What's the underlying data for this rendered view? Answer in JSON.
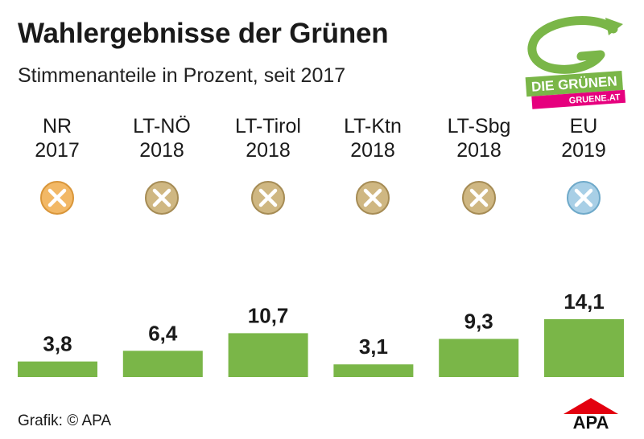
{
  "header": {
    "title": "Wahlergebnisse der Grünen",
    "subtitle": "Stimmenanteile in Prozent, seit 2017"
  },
  "logo": {
    "name": "DIE GRÜNEN",
    "url_text": "GRUENE.AT",
    "icon": "green-g-logo"
  },
  "elections": [
    {
      "line1": "NR",
      "line2": "2017",
      "mark": "x-circle-icon",
      "mark_color": "#f2b866"
    },
    {
      "line1": "LT-NÖ",
      "line2": "2018",
      "mark": "x-circle-icon",
      "mark_color": "#cfb782"
    },
    {
      "line1": "LT-Tirol",
      "line2": "2018",
      "mark": "x-circle-icon",
      "mark_color": "#cfb782"
    },
    {
      "line1": "LT-Ktn",
      "line2": "2018",
      "mark": "x-circle-icon",
      "mark_color": "#cfb782"
    },
    {
      "line1": "LT-Sbg",
      "line2": "2018",
      "mark": "x-circle-icon",
      "mark_color": "#cfb782"
    },
    {
      "line1": "EU",
      "line2": "2019",
      "mark": "x-circle-icon",
      "mark_color": "#a8cfe6"
    }
  ],
  "chart_data": {
    "type": "bar",
    "categories": [
      "NR 2017",
      "LT-NÖ 2018",
      "LT-Tirol 2018",
      "LT-Ktn 2018",
      "LT-Sbg 2018",
      "EU 2019"
    ],
    "values": [
      3.8,
      6.4,
      10.7,
      3.1,
      9.3,
      14.1
    ],
    "value_labels": [
      "3,8",
      "6,4",
      "10,7",
      "3,1",
      "9,3",
      "14,1"
    ],
    "title": "Wahlergebnisse der Grünen",
    "subtitle": "Stimmenanteile in Prozent, seit 2017",
    "ylim": [
      0,
      14.1
    ],
    "grid": false,
    "bar_color": "#7ab648"
  },
  "footer": {
    "credit": "Grafik: © APA",
    "brand": "APA"
  }
}
